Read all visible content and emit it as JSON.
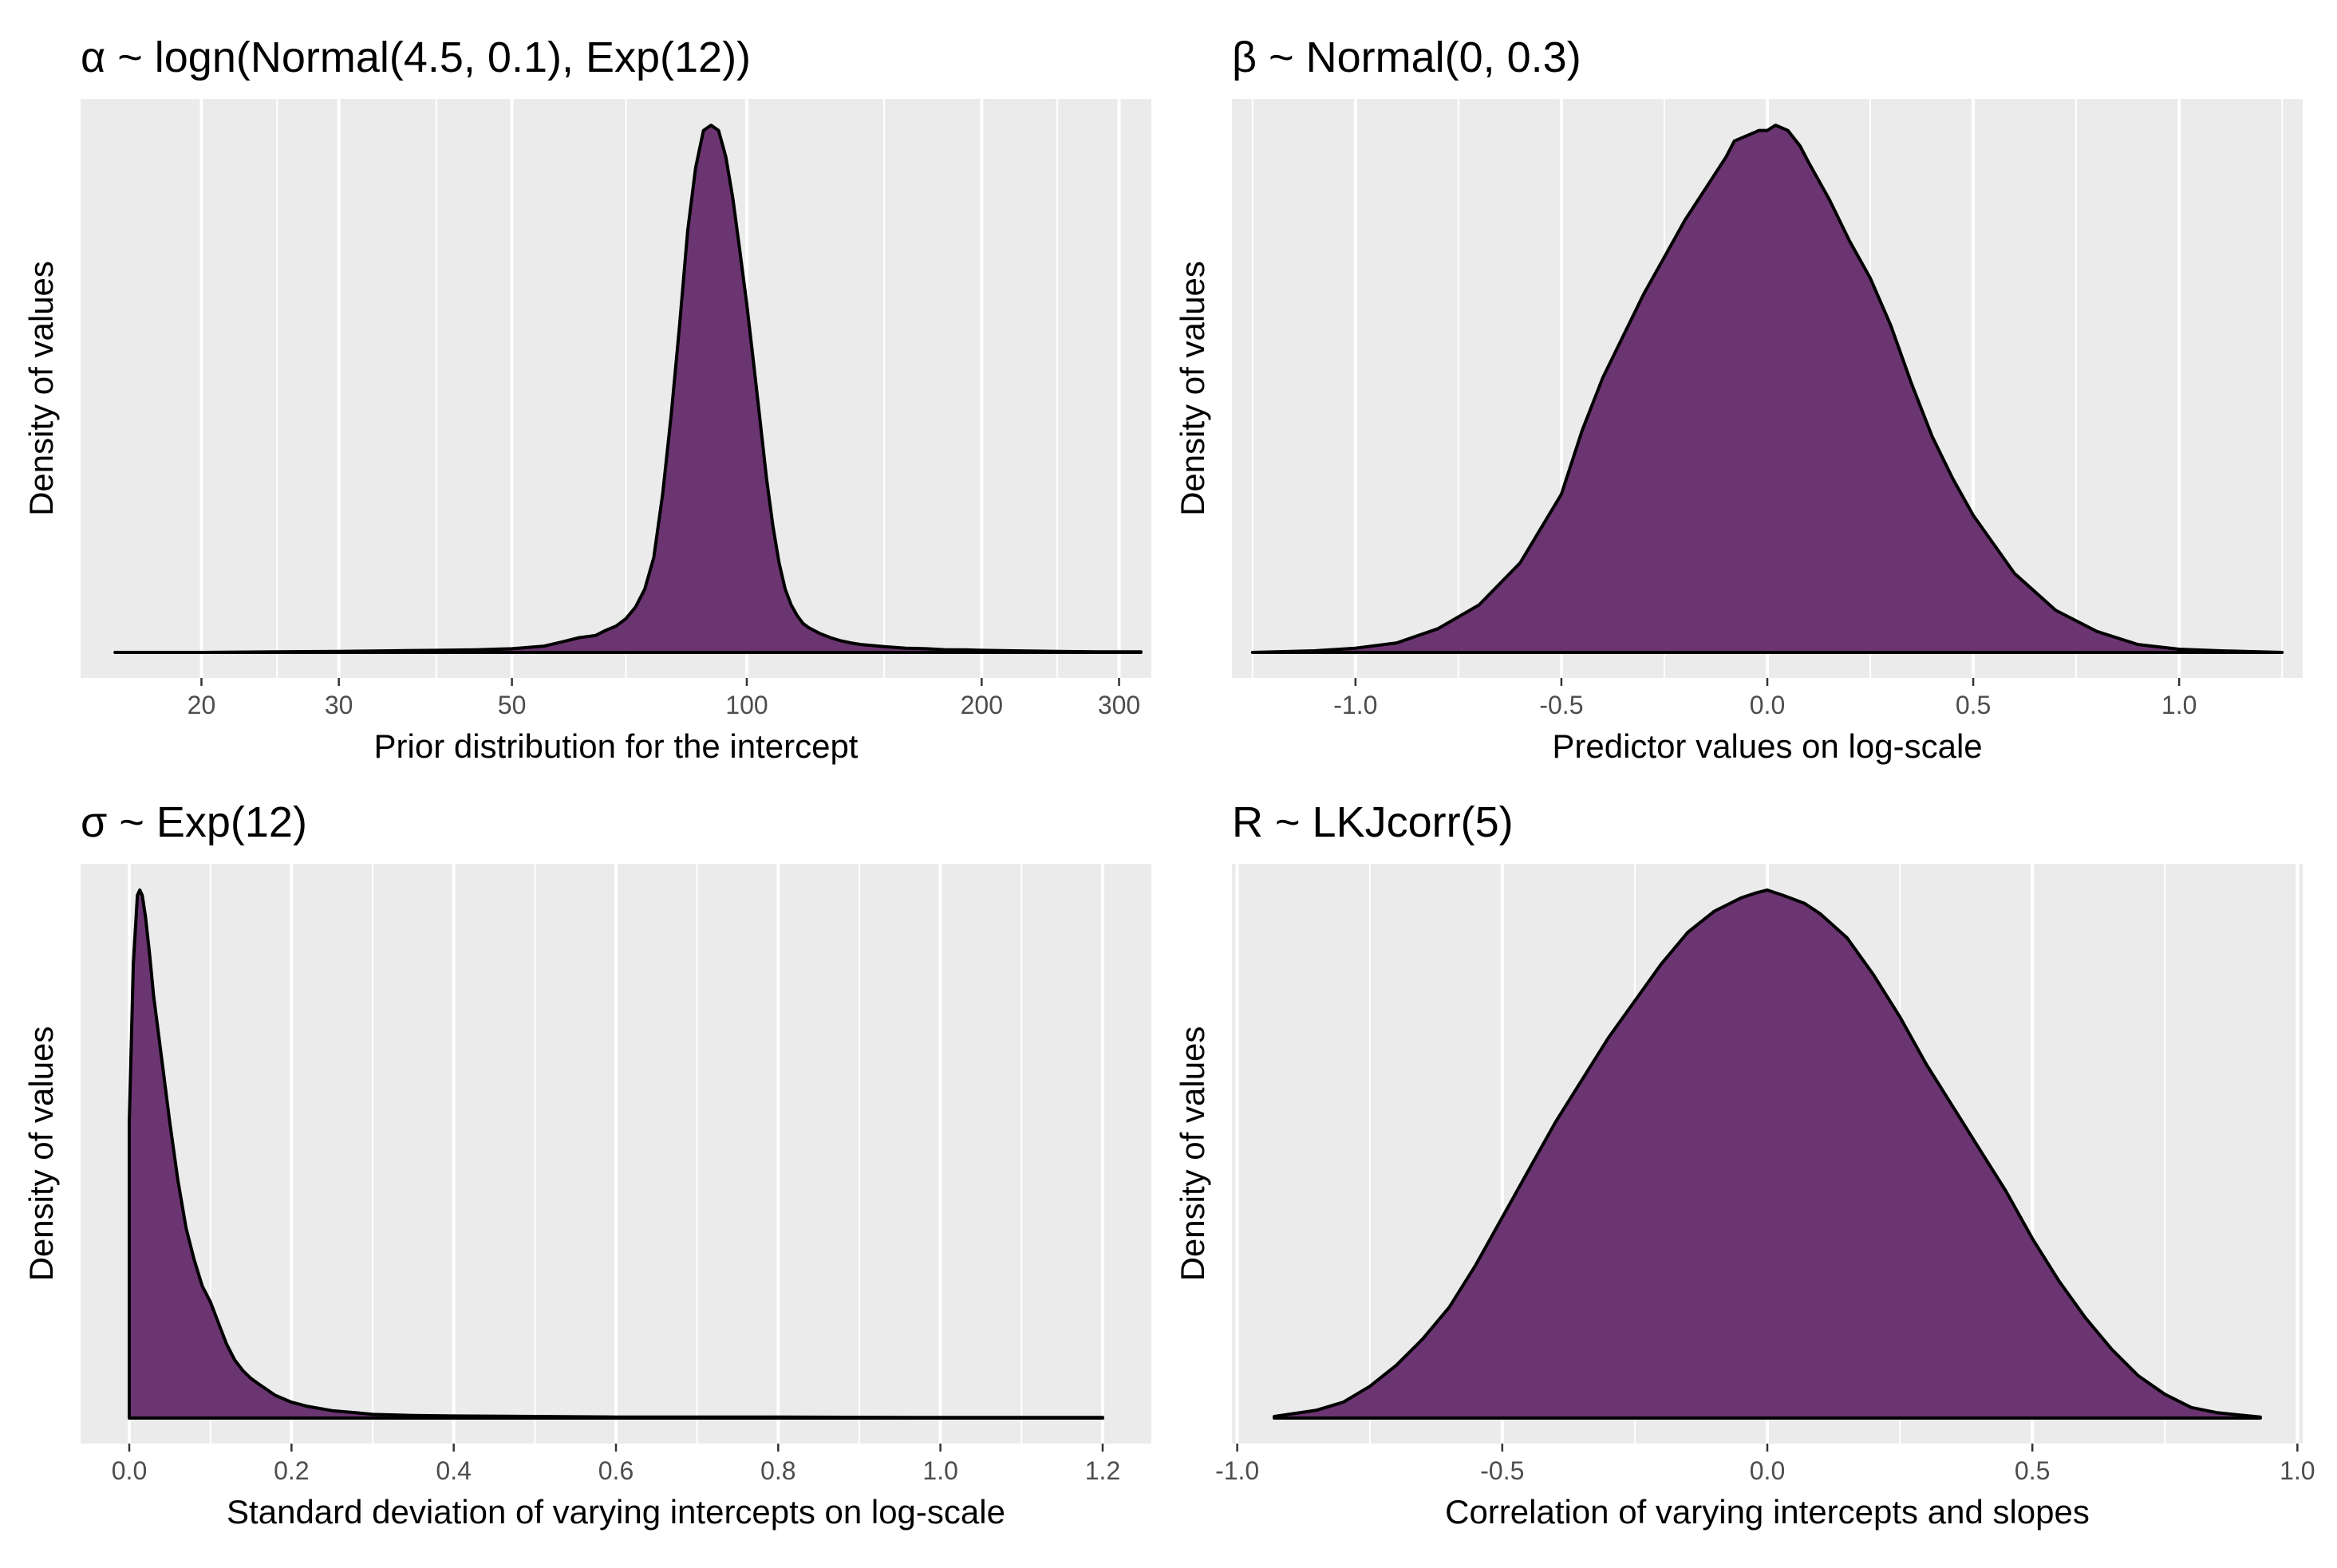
{
  "colors": {
    "fill": "#6b3571",
    "outline": "#000000",
    "panel_background": "#ebebeb",
    "grid": "#ffffff"
  },
  "chart_data": [
    {
      "type": "area",
      "title": "α ~ logn(Normal(4.5, 0.1), Exp(12))",
      "xlabel": "Prior distribution for the intercept",
      "ylabel": "Density of values",
      "x_scale": "log",
      "xlim": [
        14,
        330
      ],
      "ticks": [
        20,
        30,
        50,
        100,
        200,
        300
      ],
      "tick_labels": [
        "20",
        "30",
        "50",
        "100",
        "200",
        "300"
      ],
      "minor_ticks": [
        25,
        40,
        70,
        150,
        250
      ],
      "grid": true,
      "x": [
        15.5,
        20,
        25,
        30,
        35,
        40,
        45,
        50,
        55,
        58,
        61,
        64,
        66,
        68,
        70,
        72,
        74,
        76,
        78,
        80,
        82,
        84,
        86,
        88,
        90,
        92,
        94,
        96,
        98,
        100,
        102,
        104,
        106,
        108,
        110,
        112,
        114,
        116,
        118,
        120,
        124,
        128,
        132,
        136,
        140,
        150,
        160,
        170,
        180,
        190,
        200,
        220,
        250,
        280,
        320
      ],
      "y": [
        0,
        0,
        0.001,
        0.002,
        0.003,
        0.004,
        0.005,
        0.007,
        0.012,
        0.02,
        0.028,
        0.032,
        0.042,
        0.05,
        0.064,
        0.086,
        0.12,
        0.18,
        0.3,
        0.45,
        0.62,
        0.8,
        0.92,
        0.99,
        1.0,
        0.99,
        0.94,
        0.86,
        0.76,
        0.66,
        0.55,
        0.44,
        0.33,
        0.24,
        0.17,
        0.12,
        0.09,
        0.07,
        0.055,
        0.047,
        0.036,
        0.028,
        0.022,
        0.018,
        0.015,
        0.011,
        0.008,
        0.007,
        0.005,
        0.005,
        0.004,
        0.003,
        0.002,
        0.001,
        0.001
      ]
    },
    {
      "type": "area",
      "title": "β ~ Normal(0, 0.3)",
      "xlabel": "Predictor values on log-scale",
      "ylabel": "Density of values",
      "xlim": [
        -1.3,
        1.3
      ],
      "ticks": [
        -1.0,
        -0.5,
        0.0,
        0.5,
        1.0
      ],
      "tick_labels": [
        "-1.0",
        "-0.5",
        "0.0",
        "0.5",
        "1.0"
      ],
      "minor_ticks": [
        -1.25,
        -0.75,
        -0.25,
        0.25,
        0.75,
        1.25
      ],
      "grid": true,
      "x": [
        -1.25,
        -1.1,
        -1.0,
        -0.9,
        -0.8,
        -0.7,
        -0.6,
        -0.5,
        -0.45,
        -0.4,
        -0.35,
        -0.3,
        -0.25,
        -0.2,
        -0.15,
        -0.1,
        -0.08,
        -0.05,
        -0.02,
        0.0,
        0.02,
        0.05,
        0.08,
        0.1,
        0.15,
        0.2,
        0.25,
        0.3,
        0.35,
        0.4,
        0.45,
        0.5,
        0.6,
        0.7,
        0.8,
        0.9,
        1.0,
        1.1,
        1.25
      ],
      "y": [
        0,
        0.003,
        0.008,
        0.018,
        0.045,
        0.09,
        0.17,
        0.3,
        0.42,
        0.52,
        0.6,
        0.68,
        0.75,
        0.82,
        0.88,
        0.94,
        0.97,
        0.98,
        0.99,
        0.99,
        1.0,
        0.99,
        0.96,
        0.93,
        0.86,
        0.78,
        0.71,
        0.62,
        0.51,
        0.41,
        0.33,
        0.26,
        0.15,
        0.08,
        0.04,
        0.015,
        0.006,
        0.003,
        0
      ]
    },
    {
      "type": "area",
      "title": "σ ~ Exp(12)",
      "xlabel": "Standard deviation of varying intercepts on log-scale",
      "ylabel": "Density of values",
      "xlim": [
        -0.06,
        1.26
      ],
      "ticks": [
        0.0,
        0.2,
        0.4,
        0.6,
        0.8,
        1.0,
        1.2
      ],
      "tick_labels": [
        "0.0",
        "0.2",
        "0.4",
        "0.6",
        "0.8",
        "1.0",
        "1.2"
      ],
      "minor_ticks": [
        0.1,
        0.3,
        0.5,
        0.7,
        0.9,
        1.1
      ],
      "grid": true,
      "x": [
        0.0,
        0.005,
        0.01,
        0.013,
        0.016,
        0.02,
        0.025,
        0.03,
        0.04,
        0.05,
        0.06,
        0.07,
        0.08,
        0.09,
        0.1,
        0.11,
        0.12,
        0.13,
        0.14,
        0.15,
        0.16,
        0.18,
        0.2,
        0.22,
        0.25,
        0.28,
        0.3,
        0.35,
        0.4,
        0.5,
        0.6,
        0.8,
        1.0,
        1.2
      ],
      "y": [
        0.56,
        0.86,
        0.99,
        1.0,
        0.99,
        0.95,
        0.88,
        0.8,
        0.68,
        0.56,
        0.45,
        0.36,
        0.3,
        0.25,
        0.22,
        0.18,
        0.14,
        0.11,
        0.09,
        0.075,
        0.064,
        0.043,
        0.03,
        0.022,
        0.014,
        0.01,
        0.007,
        0.005,
        0.004,
        0.003,
        0.002,
        0.002,
        0.001,
        0.001
      ]
    },
    {
      "type": "area",
      "title": "R ~ LKJcorr(5)",
      "xlabel": "Correlation of varying intercepts and slopes",
      "ylabel": "Density of values",
      "xlim": [
        -1.01,
        1.01
      ],
      "ticks": [
        -1.0,
        -0.5,
        0.0,
        0.5,
        1.0
      ],
      "tick_labels": [
        "-1.0",
        "-0.5",
        "0.0",
        "0.5",
        "1.0"
      ],
      "minor_ticks": [
        -0.75,
        -0.25,
        0.25,
        0.75
      ],
      "grid": true,
      "x": [
        -0.93,
        -0.85,
        -0.8,
        -0.75,
        -0.7,
        -0.65,
        -0.6,
        -0.55,
        -0.5,
        -0.45,
        -0.4,
        -0.35,
        -0.3,
        -0.25,
        -0.2,
        -0.15,
        -0.1,
        -0.05,
        -0.02,
        0.0,
        0.03,
        0.07,
        0.1,
        0.15,
        0.2,
        0.25,
        0.3,
        0.35,
        0.4,
        0.45,
        0.5,
        0.55,
        0.6,
        0.65,
        0.7,
        0.75,
        0.8,
        0.85,
        0.93
      ],
      "y": [
        0.003,
        0.015,
        0.03,
        0.06,
        0.1,
        0.15,
        0.21,
        0.29,
        0.38,
        0.47,
        0.56,
        0.64,
        0.72,
        0.79,
        0.86,
        0.92,
        0.96,
        0.985,
        0.995,
        1.0,
        0.99,
        0.975,
        0.955,
        0.91,
        0.84,
        0.76,
        0.67,
        0.59,
        0.51,
        0.43,
        0.34,
        0.26,
        0.19,
        0.13,
        0.08,
        0.045,
        0.02,
        0.01,
        0.002
      ]
    }
  ]
}
